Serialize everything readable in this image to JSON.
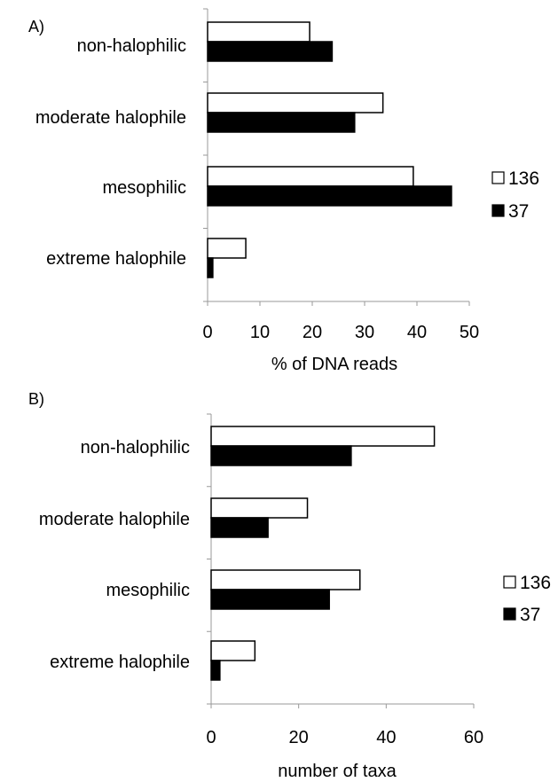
{
  "chart_data": [
    {
      "type": "bar",
      "orientation": "horizontal",
      "panel_label": "A)",
      "categories": [
        "non-halophilic",
        "moderate halophile",
        "mesophilic",
        "extreme halophile"
      ],
      "series": [
        {
          "name": "136",
          "values": [
            19.5,
            33.5,
            39.3,
            7.3
          ],
          "color": "#ffffff"
        },
        {
          "name": "37",
          "values": [
            23.8,
            28.1,
            46.6,
            1.0
          ],
          "color": "#000000"
        }
      ],
      "xlabel": "% of DNA reads",
      "xlim": [
        0,
        50
      ],
      "xticks": [
        "0",
        "10",
        "20",
        "30",
        "40",
        "50"
      ],
      "legend_position": "right"
    },
    {
      "type": "bar",
      "orientation": "horizontal",
      "panel_label": "B)",
      "categories": [
        "non-halophilic",
        "moderate halophile",
        "mesophilic",
        "extreme halophile"
      ],
      "series": [
        {
          "name": "136",
          "values": [
            51,
            22,
            34,
            10
          ],
          "color": "#ffffff"
        },
        {
          "name": "37",
          "values": [
            32,
            13,
            27,
            2
          ],
          "color": "#000000"
        }
      ],
      "xlabel": "number of taxa",
      "xlim": [
        0,
        60
      ],
      "xticks": [
        "0",
        "20",
        "40",
        "60"
      ],
      "legend_position": "right"
    }
  ]
}
